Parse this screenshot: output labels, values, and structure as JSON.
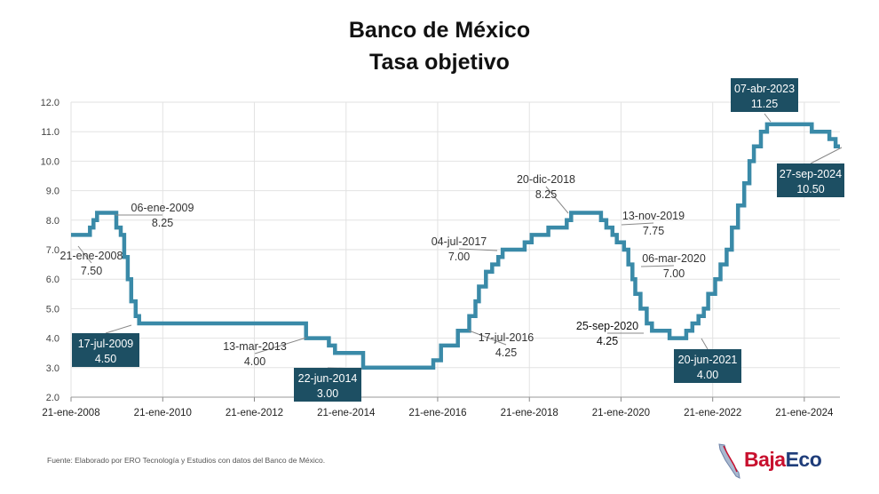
{
  "title_line1": "Banco de México",
  "title_line2": "Tasa objetivo",
  "source": "Fuente: Elaborado por ERO Tecnología y Estudios con datos del Banco de México.",
  "logo": {
    "part1": "Baja",
    "part2": "Eco",
    "icon": "baja-california-map-icon",
    "color1": "#c8102e",
    "color2": "#1f3d7a"
  },
  "chart_data": {
    "type": "line",
    "step": true,
    "line_color": "#3a8aa8",
    "ylim": [
      2.0,
      12.0
    ],
    "yticks": [
      "2.0",
      "3.0",
      "4.0",
      "5.0",
      "6.0",
      "7.0",
      "8.0",
      "9.0",
      "10.0",
      "11.0",
      "12.0"
    ],
    "xlim": [
      "2008-01-21",
      "2024-10-31"
    ],
    "xticks": [
      {
        "date": "2008-01-21",
        "label": "21-ene-2008"
      },
      {
        "date": "2010-01-21",
        "label": "21-ene-2010"
      },
      {
        "date": "2012-01-21",
        "label": "21-ene-2012"
      },
      {
        "date": "2014-01-21",
        "label": "21-ene-2014"
      },
      {
        "date": "2016-01-21",
        "label": "21-ene-2016"
      },
      {
        "date": "2018-01-21",
        "label": "21-ene-2018"
      },
      {
        "date": "2020-01-21",
        "label": "21-ene-2020"
      },
      {
        "date": "2022-01-21",
        "label": "21-ene-2022"
      },
      {
        "date": "2024-01-21",
        "label": "21-ene-2024"
      }
    ],
    "grid_x": true,
    "grid_y": true,
    "series": [
      {
        "points": [
          [
            "2008-01-21",
            7.5
          ],
          [
            "2008-06-20",
            7.75
          ],
          [
            "2008-07-18",
            8.0
          ],
          [
            "2008-08-15",
            8.25
          ],
          [
            "2009-01-16",
            7.75
          ],
          [
            "2009-02-20",
            7.5
          ],
          [
            "2009-03-20",
            6.75
          ],
          [
            "2009-04-17",
            6.0
          ],
          [
            "2009-05-15",
            5.25
          ],
          [
            "2009-06-19",
            4.75
          ],
          [
            "2009-07-17",
            4.5
          ],
          [
            "2013-03-08",
            4.0
          ],
          [
            "2013-09-06",
            3.75
          ],
          [
            "2013-10-25",
            3.5
          ],
          [
            "2014-06-06",
            3.0
          ],
          [
            "2015-12-17",
            3.25
          ],
          [
            "2016-02-17",
            3.75
          ],
          [
            "2016-06-30",
            4.25
          ],
          [
            "2016-09-29",
            4.75
          ],
          [
            "2016-11-17",
            5.25
          ],
          [
            "2016-12-15",
            5.75
          ],
          [
            "2017-02-09",
            6.25
          ],
          [
            "2017-03-30",
            6.5
          ],
          [
            "2017-05-18",
            6.75
          ],
          [
            "2017-06-22",
            7.0
          ],
          [
            "2017-12-14",
            7.25
          ],
          [
            "2018-02-08",
            7.5
          ],
          [
            "2018-06-21",
            7.75
          ],
          [
            "2018-11-15",
            8.0
          ],
          [
            "2018-12-20",
            8.25
          ],
          [
            "2019-08-15",
            8.0
          ],
          [
            "2019-09-26",
            7.75
          ],
          [
            "2019-11-14",
            7.5
          ],
          [
            "2019-12-19",
            7.25
          ],
          [
            "2020-02-14",
            7.0
          ],
          [
            "2020-03-20",
            6.5
          ],
          [
            "2020-04-21",
            6.0
          ],
          [
            "2020-05-14",
            5.5
          ],
          [
            "2020-06-25",
            5.0
          ],
          [
            "2020-08-13",
            4.5
          ],
          [
            "2020-09-24",
            4.25
          ],
          [
            "2021-02-11",
            4.0
          ],
          [
            "2021-06-24",
            4.25
          ],
          [
            "2021-08-12",
            4.5
          ],
          [
            "2021-09-30",
            4.75
          ],
          [
            "2021-11-11",
            5.0
          ],
          [
            "2021-12-16",
            5.5
          ],
          [
            "2022-02-10",
            6.0
          ],
          [
            "2022-03-24",
            6.5
          ],
          [
            "2022-05-12",
            7.0
          ],
          [
            "2022-06-23",
            7.75
          ],
          [
            "2022-08-11",
            8.5
          ],
          [
            "2022-09-29",
            9.25
          ],
          [
            "2022-11-10",
            10.0
          ],
          [
            "2022-12-15",
            10.5
          ],
          [
            "2023-02-09",
            11.0
          ],
          [
            "2023-03-30",
            11.25
          ],
          [
            "2024-03-21",
            11.0
          ],
          [
            "2024-08-08",
            10.75
          ],
          [
            "2024-09-26",
            10.5
          ],
          [
            "2024-10-31",
            10.5
          ]
        ]
      }
    ],
    "annotations": [
      {
        "date": "21-ene-2008",
        "value": "7.50",
        "style": "plain"
      },
      {
        "date": "06-ene-2009",
        "value": "8.25",
        "style": "plain"
      },
      {
        "date": "17-jul-2009",
        "value": "4.50",
        "style": "box"
      },
      {
        "date": "13-mar-2013",
        "value": "4.00",
        "style": "plain"
      },
      {
        "date": "22-jun-2014",
        "value": "3.00",
        "style": "box"
      },
      {
        "date": "17-jul-2016",
        "value": "4.25",
        "style": "plain"
      },
      {
        "date": "04-jul-2017",
        "value": "7.00",
        "style": "plain"
      },
      {
        "date": "20-dic-2018",
        "value": "8.25",
        "style": "plain"
      },
      {
        "date": "13-nov-2019",
        "value": "7.75",
        "style": "plain"
      },
      {
        "date": "06-mar-2020",
        "value": "7.00",
        "style": "plain"
      },
      {
        "date": "25-sep-2020",
        "value": "4.25",
        "style": "plain-dark"
      },
      {
        "date": "20-jun-2021",
        "value": "4.00",
        "style": "box"
      },
      {
        "date": "07-abr-2023",
        "value": "11.25",
        "style": "box"
      },
      {
        "date": "27-sep-2024",
        "value": "10.50",
        "style": "box"
      }
    ]
  }
}
